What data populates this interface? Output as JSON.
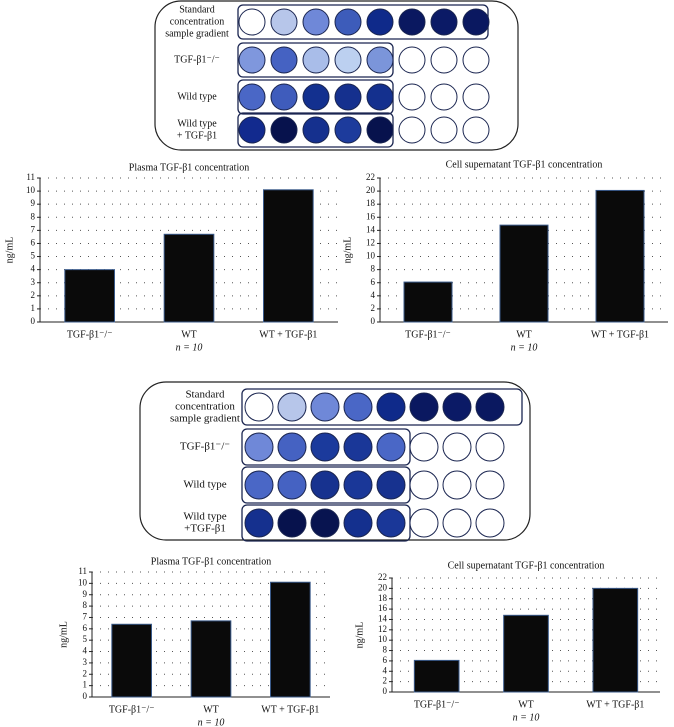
{
  "chart_data": [
    {
      "type": "bar",
      "title": "Plasma TGF-β1 concentration",
      "y_label": "ng/mL",
      "categories": [
        "TGF-β1⁻/⁻",
        "WT",
        "WT + TGF-β1"
      ],
      "values": [
        4,
        6.7,
        10.1
      ],
      "color": "#0a0a0a",
      "annotation": "n = 10",
      "ylim": [
        0,
        11
      ],
      "yticks": [
        0,
        1,
        2,
        3,
        4,
        5,
        6,
        7,
        8,
        9,
        10,
        11
      ],
      "grid": true
    },
    {
      "type": "bar",
      "title": "Cell supernatant TGF-β1 concentration",
      "y_label": "ng/mL",
      "categories": [
        "TGF-β1⁻/⁻",
        "WT",
        "WT + TGF-β1"
      ],
      "values": [
        6.1,
        14.8,
        20.1
      ],
      "color": "#0a0a0a",
      "annotation": "n = 10",
      "ylim": [
        0,
        22
      ],
      "yticks": [
        0,
        2,
        4,
        6,
        8,
        10,
        12,
        14,
        16,
        18,
        20,
        22
      ],
      "grid": true
    },
    {
      "type": "bar",
      "title": "Plasma TGF-β1 concentration",
      "y_label": "ng/mL",
      "categories": [
        "TGF-β1⁻/⁻",
        "WT",
        "WT + TGF-β1"
      ],
      "values": [
        6.4,
        6.7,
        10.1
      ],
      "color": "#0a0a0a",
      "annotation": "n = 10",
      "ylim": [
        0,
        11
      ],
      "yticks": [
        0,
        1,
        2,
        3,
        4,
        5,
        6,
        7,
        8,
        9,
        10,
        11
      ],
      "grid": true
    },
    {
      "type": "bar",
      "title": "Cell supernatant TGF-β1 concentration",
      "y_label": "ng/mL",
      "categories": [
        "TGF-β1⁻/⁻",
        "WT",
        "WT + TGF-β1"
      ],
      "values": [
        6.1,
        14.8,
        20
      ],
      "color": "#0a0a0a",
      "annotation": "n = 10",
      "ylim": [
        0,
        22
      ],
      "yticks": [
        0,
        2,
        4,
        6,
        8,
        10,
        12,
        14,
        16,
        18,
        20,
        22
      ],
      "grid": true
    }
  ],
  "plates": [
    {
      "rows": [
        {
          "label": [
            "Standard",
            "concentration",
            "sample gradient"
          ],
          "wells": [
            "#ffffff",
            "#b7c6ea",
            "#6f88d8",
            "#3d5cba",
            "#0f2a8a",
            "#0a1860",
            "#0b1a66",
            "#0a1860"
          ]
        },
        {
          "label": [
            "TGF-β1⁻/⁻"
          ],
          "wells": [
            "#7f97dd",
            "#4562c2",
            "#a9bde9",
            "#bcd0f0",
            "#7b95da",
            "#ffffff",
            "#ffffff",
            "#ffffff"
          ]
        },
        {
          "label": [
            "Wild type"
          ],
          "wells": [
            "#4a67c6",
            "#3f5cbc",
            "#13308f",
            "#15308e",
            "#14308e",
            "#ffffff",
            "#ffffff",
            "#ffffff"
          ]
        },
        {
          "label": [
            "Wild type",
            "+ TGF-β1"
          ],
          "wells": [
            "#122a8e",
            "#07124d",
            "#15308e",
            "#1d3b9c",
            "#07124d",
            "#ffffff",
            "#ffffff",
            "#ffffff"
          ]
        }
      ]
    },
    {
      "rows": [
        {
          "label": [
            "Standard",
            "concentration",
            "sample gradient"
          ],
          "wells": [
            "#ffffff",
            "#b7c6ea",
            "#6f88d8",
            "#4a67c6",
            "#0f2a8a",
            "#0a1860",
            "#0b1a66",
            "#0a1860"
          ]
        },
        {
          "label": [
            "TGF-β1⁻/⁻"
          ],
          "wells": [
            "#6f88d8",
            "#4562c2",
            "#1b3a9c",
            "#1a3798",
            "#4a67c6",
            "#ffffff",
            "#ffffff",
            "#ffffff"
          ]
        },
        {
          "label": [
            "Wild type"
          ],
          "wells": [
            "#4a67c6",
            "#4562c2",
            "#17328f",
            "#1a3798",
            "#17328f",
            "#ffffff",
            "#ffffff",
            "#ffffff"
          ]
        },
        {
          "label": [
            "Wild type",
            "+TGF-β1"
          ],
          "wells": [
            "#15308e",
            "#07124d",
            "#081450",
            "#14308e",
            "#1a3798",
            "#ffffff",
            "#ffffff",
            "#ffffff"
          ]
        }
      ]
    }
  ]
}
